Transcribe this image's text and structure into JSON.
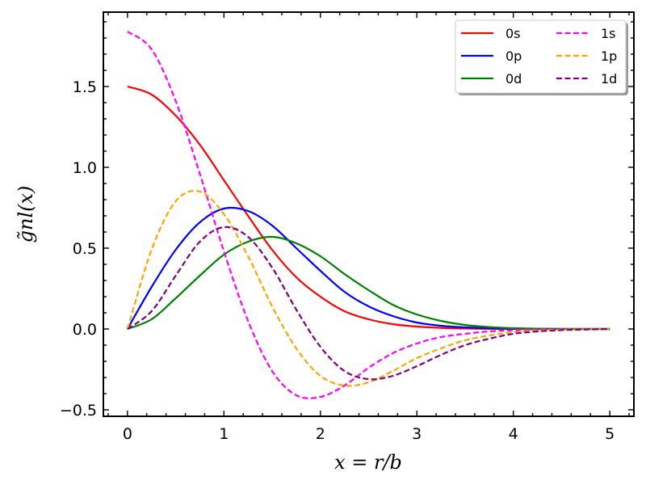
{
  "chart_data": {
    "type": "line",
    "title": "",
    "xlabel": "x = r/b",
    "ylabel": "g̃nl(x)",
    "xlim": [
      -0.25,
      5.25
    ],
    "ylim": [
      -0.54,
      1.96
    ],
    "xticks": [
      0,
      1,
      2,
      3,
      4,
      5
    ],
    "xtick_labels": [
      "0",
      "1",
      "2",
      "3",
      "4",
      "5"
    ],
    "yticks": [
      -0.5,
      0.0,
      0.5,
      1.0,
      1.5
    ],
    "ytick_labels": [
      "−0.5",
      "0.0",
      "0.5",
      "1.0",
      "1.5"
    ],
    "grid": false,
    "legend_position": "top-right",
    "x": [
      0,
      0.25,
      0.5,
      0.75,
      1.0,
      1.25,
      1.5,
      1.75,
      2.0,
      2.25,
      2.5,
      2.75,
      3.0,
      3.25,
      3.5,
      3.75,
      4.0,
      4.25,
      4.5,
      4.75,
      5.0
    ],
    "series": [
      {
        "name": "0s",
        "color": "#ff0000",
        "dash": "solid",
        "values": [
          1.5,
          1.45,
          1.32,
          1.14,
          0.92,
          0.7,
          0.49,
          0.32,
          0.2,
          0.11,
          0.06,
          0.03,
          0.015,
          0.007,
          0.003,
          0.001,
          0.0005,
          0.0002,
          0.0001,
          0.0,
          0.0
        ]
      },
      {
        "name": "0p",
        "color": "#0000ff",
        "dash": "solid",
        "values": [
          0.0,
          0.26,
          0.49,
          0.66,
          0.745,
          0.73,
          0.64,
          0.5,
          0.36,
          0.23,
          0.14,
          0.08,
          0.04,
          0.02,
          0.01,
          0.004,
          0.002,
          0.001,
          0.0,
          0.0,
          0.0
        ]
      },
      {
        "name": "0d",
        "color": "#008000",
        "dash": "solid",
        "values": [
          0.0,
          0.06,
          0.19,
          0.33,
          0.46,
          0.54,
          0.57,
          0.53,
          0.45,
          0.34,
          0.24,
          0.15,
          0.09,
          0.05,
          0.025,
          0.012,
          0.005,
          0.002,
          0.001,
          0.0,
          0.0
        ]
      },
      {
        "name": "1s",
        "color": "#ff00ff",
        "dash": "dashed",
        "values": [
          1.84,
          1.73,
          1.41,
          0.96,
          0.48,
          0.05,
          -0.26,
          -0.41,
          -0.42,
          -0.35,
          -0.24,
          -0.15,
          -0.09,
          -0.05,
          -0.03,
          -0.015,
          -0.008,
          -0.004,
          -0.002,
          -0.001,
          0.0
        ]
      },
      {
        "name": "1p",
        "color": "#ffa500",
        "dash": "dashed",
        "values": [
          0.0,
          0.49,
          0.79,
          0.85,
          0.71,
          0.45,
          0.14,
          -0.12,
          -0.29,
          -0.35,
          -0.33,
          -0.26,
          -0.18,
          -0.12,
          -0.07,
          -0.04,
          -0.02,
          -0.01,
          -0.005,
          -0.002,
          0.0
        ]
      },
      {
        "name": "1d",
        "color": "#800080",
        "dash": "dashed",
        "values": [
          0.0,
          0.11,
          0.33,
          0.54,
          0.63,
          0.57,
          0.38,
          0.12,
          -0.11,
          -0.26,
          -0.31,
          -0.29,
          -0.23,
          -0.16,
          -0.1,
          -0.06,
          -0.03,
          -0.015,
          -0.007,
          -0.003,
          0.0
        ]
      }
    ]
  }
}
